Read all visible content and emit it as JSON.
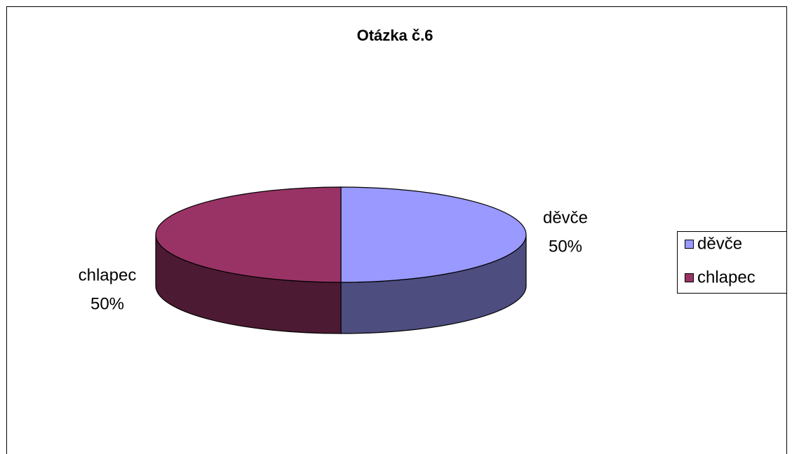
{
  "chart_data": {
    "type": "pie",
    "title": "Otázka č.6",
    "categories": [
      "děvče",
      "chlapec"
    ],
    "values": [
      50,
      50
    ],
    "value_labels": [
      "50%",
      "50%"
    ],
    "colors": [
      "#9999ff",
      "#993366"
    ],
    "legend": "right"
  }
}
